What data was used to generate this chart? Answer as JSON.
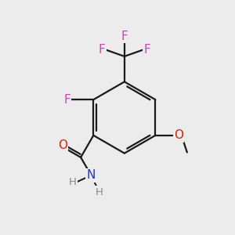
{
  "bg_color": "#ececec",
  "bond_color": "#1a1a1a",
  "bond_width": 1.6,
  "atom_colors": {
    "F": "#cc44bb",
    "O": "#dd2200",
    "N": "#2233cc",
    "H": "#888888"
  },
  "font_size_atom": 11,
  "font_size_H": 9.5
}
